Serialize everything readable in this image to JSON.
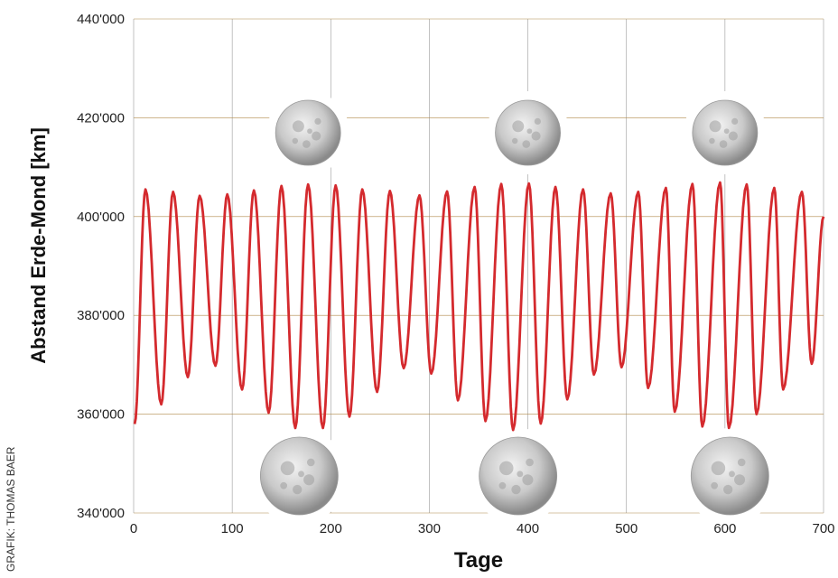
{
  "chart_data": {
    "type": "line",
    "xlabel": "Tage",
    "ylabel": "Abstand Erde-Mond [km]",
    "xlim": [
      0,
      700
    ],
    "ylim": [
      340000,
      440000
    ],
    "x_ticks": [
      "0",
      "100",
      "200",
      "300",
      "400",
      "500",
      "600",
      "700"
    ],
    "y_ticks": [
      "340'000",
      "360'000",
      "380'000",
      "400'000",
      "420'000",
      "440'000"
    ],
    "grid": true,
    "line_color": "#d42a2e",
    "series": [
      {
        "maxima": [
          [
            12,
            405500
          ],
          [
            40,
            405000
          ],
          [
            67,
            404200
          ],
          [
            95,
            404500
          ],
          [
            122,
            405300
          ],
          [
            150,
            406200
          ],
          [
            177,
            406500
          ],
          [
            205,
            406300
          ],
          [
            232,
            405500
          ],
          [
            260,
            405200
          ],
          [
            290,
            404300
          ],
          [
            318,
            405100
          ],
          [
            346,
            406000
          ],
          [
            373,
            406600
          ],
          [
            401,
            406700
          ],
          [
            428,
            406000
          ],
          [
            456,
            405500
          ],
          [
            484,
            404700
          ],
          [
            512,
            405000
          ],
          [
            540,
            405800
          ],
          [
            567,
            406600
          ],
          [
            595,
            406900
          ],
          [
            622,
            406500
          ],
          [
            650,
            405800
          ],
          [
            678,
            405000
          ]
        ],
        "minima": [
          [
            1,
            358000
          ],
          [
            28,
            362000
          ],
          [
            55,
            367500
          ],
          [
            83,
            369800
          ],
          [
            110,
            365000
          ],
          [
            137,
            360300
          ],
          [
            164,
            357200
          ],
          [
            192,
            357200
          ],
          [
            219,
            359500
          ],
          [
            247,
            364500
          ],
          [
            274,
            369300
          ],
          [
            302,
            368200
          ],
          [
            329,
            362800
          ],
          [
            357,
            358600
          ],
          [
            385,
            356800
          ],
          [
            413,
            358100
          ],
          [
            440,
            363000
          ],
          [
            467,
            368000
          ],
          [
            495,
            369500
          ],
          [
            522,
            365300
          ],
          [
            549,
            360500
          ],
          [
            577,
            357500
          ],
          [
            604,
            357200
          ],
          [
            632,
            360000
          ],
          [
            659,
            365000
          ],
          [
            688,
            370200
          ]
        ],
        "end": [
          700,
          400000
        ]
      }
    ],
    "annotations": {
      "moon_icons_top_x": [
        177,
        400,
        600
      ],
      "moon_icons_bottom_x": [
        168,
        390,
        605
      ],
      "credit": "GRAFIK: THOMAS BAER"
    }
  }
}
